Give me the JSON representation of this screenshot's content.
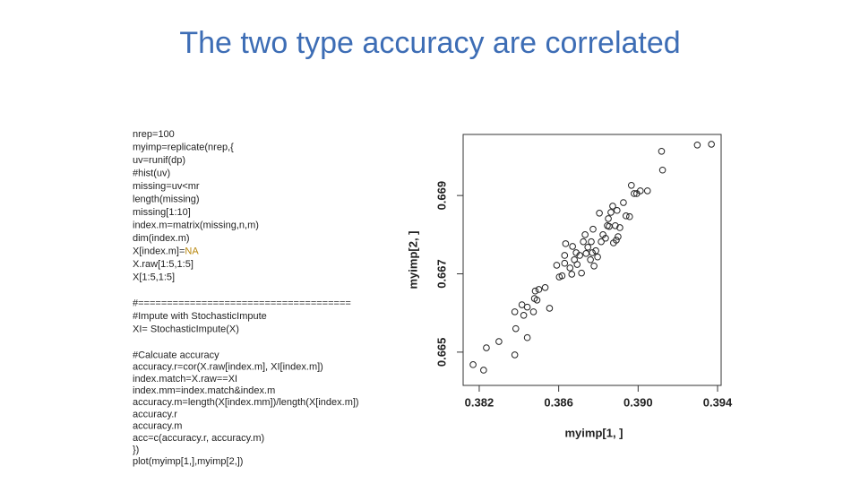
{
  "title": "The two type accuracy are correlated",
  "code": [
    [
      "nrep=100",
      "myimp=replicate(nrep,{",
      "uv=runif(dp)",
      "#hist(uv)",
      "missing=uv<mr",
      "length(missing)",
      "missing[1:10]",
      "index.m=matrix(missing,n,m)",
      "dim(index.m)",
      {
        "text": "X[index.m]=",
        "highlight": "NA"
      },
      "X.raw[1:5,1:5]",
      "X[1:5,1:5]"
    ],
    [
      "#=====================================",
      "#Impute with StochasticImpute",
      "XI= StochasticImpute(X)"
    ],
    [
      "#Calcuate accuracy",
      "accuracy.r=cor(X.raw[index.m], XI[index.m])",
      "index.match=X.raw==XI",
      "index.mm=index.match&index.m",
      "accuracy.m=length(X[index.mm])/length(X[index.m])",
      "accuracy.r",
      "accuracy.m",
      "acc=c(accuracy.r, accuracy.m)",
      "})",
      "plot(myimp[1,],myimp[2,])"
    ]
  ],
  "chart_data": {
    "type": "scatter",
    "x_label": "myimp[1, ]",
    "y_label": "myimp[2, ]",
    "xlim": [
      0.38119,
      0.39418
    ],
    "ylim": [
      0.66415,
      0.67056
    ],
    "xticks": [
      0.382,
      0.386,
      {
        "value": 0.39,
        "label": "0.390"
      },
      0.394
    ],
    "yticks": [
      0.665,
      0.667,
      0.669
    ],
    "color": "#222222",
    "x": [
      0.38169,
      0.38222,
      0.38236,
      0.38299,
      0.38379,
      0.38384,
      0.38379,
      0.38442,
      0.38424,
      0.38415,
      0.38442,
      0.38473,
      0.38478,
      0.385,
      0.38482,
      0.38491,
      0.38554,
      0.38532,
      0.3859,
      0.38617,
      0.3863,
      0.38635,
      0.3863,
      0.38657,
      0.38666,
      0.38679,
      0.38688,
      0.38693,
      0.38706,
      0.38715,
      0.38724,
      0.38733,
      0.38738,
      0.38747,
      0.3876,
      0.38764,
      0.38769,
      0.38778,
      0.38787,
      0.38796,
      0.38773,
      0.38814,
      0.38823,
      0.38836,
      0.38845,
      0.38854,
      0.3885,
      0.38863,
      0.38872,
      0.38885,
      0.3889,
      0.38894,
      0.38899,
      0.38908,
      0.38926,
      0.38939,
      0.38957,
      0.38966,
      0.3898,
      0.38993,
      0.39011,
      0.39047,
      0.39118,
      0.39123,
      0.39298,
      0.39369,
      0.38805,
      0.38876,
      0.3867,
      0.38603
    ],
    "values": [
      0.66468,
      0.66454,
      0.66511,
      0.66527,
      0.66493,
      0.6656,
      0.66603,
      0.66537,
      0.66594,
      0.66621,
      0.66615,
      0.66603,
      0.66637,
      0.6666,
      0.66656,
      0.66633,
      0.66612,
      0.66665,
      0.66722,
      0.66695,
      0.66727,
      0.66777,
      0.66747,
      0.66715,
      0.66699,
      0.66736,
      0.66754,
      0.66724,
      0.66747,
      0.66702,
      0.66782,
      0.668,
      0.66752,
      0.66768,
      0.66736,
      0.66782,
      0.66754,
      0.6672,
      0.66759,
      0.66743,
      0.66814,
      0.66782,
      0.668,
      0.66791,
      0.66823,
      0.66821,
      0.66841,
      0.66857,
      0.66873,
      0.66823,
      0.66786,
      0.66862,
      0.66795,
      0.66818,
      0.66882,
      0.66848,
      0.66846,
      0.66926,
      0.66905,
      0.66905,
      0.66912,
      0.66912,
      0.67013,
      0.66965,
      0.67029,
      0.67031,
      0.66855,
      0.66779,
      0.6677,
      0.66692
    ]
  }
}
